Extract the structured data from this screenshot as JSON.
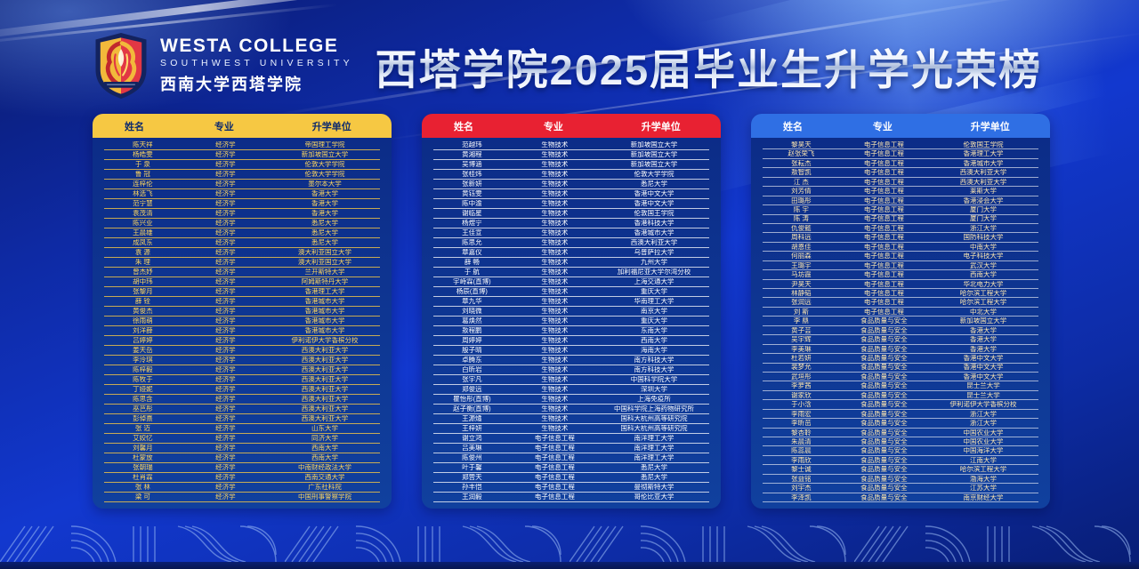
{
  "page": {
    "title": "西塔学院2025届毕业生升学光荣榜"
  },
  "logo": {
    "college_en": "WESTA COLLEGE",
    "university_en": "SOUTHWEST UNIVERSITY",
    "college_cn": "西南大学西塔学院",
    "shield_colors": {
      "left": "#f2b93b",
      "right": "#e23744",
      "border": "#13235f"
    }
  },
  "columns": [
    "姓名",
    "专业",
    "升学单位"
  ],
  "tables": [
    {
      "colors": {
        "header_bg": "#f6c843",
        "header_fg": "#0d2a6e",
        "row_fg": "#ffd75e",
        "line": "rgba(246,200,67,0.8)"
      },
      "rows": [
        [
          "陈天祥",
          "经济学",
          "帝国理工学院"
        ],
        [
          "杨皓雯",
          "经济学",
          "新加坡国立大学"
        ],
        [
          "于 泉",
          "经济学",
          "伦敦大学学院"
        ],
        [
          "鲁 冠",
          "经济学",
          "伦敦大学学院"
        ],
        [
          "连梓伦",
          "经济学",
          "墨尔本大学"
        ],
        [
          "林选飞",
          "经济学",
          "香港大学"
        ],
        [
          "范宁慧",
          "经济学",
          "香港大学"
        ],
        [
          "袁茂清",
          "经济学",
          "香港大学"
        ],
        [
          "陈兴业",
          "经济学",
          "悉尼大学"
        ],
        [
          "王晨雄",
          "经济学",
          "悉尼大学"
        ],
        [
          "成凤东",
          "经济学",
          "悉尼大学"
        ],
        [
          "袁 源",
          "经济学",
          "澳大利亚国立大学"
        ],
        [
          "朱 理",
          "经济学",
          "澳大利亚国立大学"
        ],
        [
          "曾杰妤",
          "经济学",
          "兰开斯特大学"
        ],
        [
          "胡中玮",
          "经济学",
          "阿姆斯特丹大学"
        ],
        [
          "张黎月",
          "经济学",
          "香港理工大学"
        ],
        [
          "薛 铨",
          "经济学",
          "香港城市大学"
        ],
        [
          "黄俊杰",
          "经济学",
          "香港城市大学"
        ],
        [
          "徐雨萌",
          "经济学",
          "香港城市大学"
        ],
        [
          "刘洋薛",
          "经济学",
          "香港城市大学"
        ],
        [
          "吕婷婷",
          "经济学",
          "伊利诺伊大学香槟分校"
        ],
        [
          "姜天岳",
          "经济学",
          "西澳大利亚大学"
        ],
        [
          "李泠琪",
          "经济学",
          "西澳大利亚大学"
        ],
        [
          "陈梓毅",
          "经济学",
          "西澳大利亚大学"
        ],
        [
          "陈牧于",
          "经济学",
          "西澳大利亚大学"
        ],
        [
          "丁娅妮",
          "经济学",
          "西澳大利亚大学"
        ],
        [
          "陈思含",
          "经济学",
          "西澳大利亚大学"
        ],
        [
          "巫芑彤",
          "经济学",
          "西澳大利亚大学"
        ],
        [
          "彭倬熹",
          "经济学",
          "西澳大利亚大学"
        ],
        [
          "张 迈",
          "经济学",
          "山东大学"
        ],
        [
          "艾姣忆",
          "经济学",
          "同济大学"
        ],
        [
          "刘馨月",
          "经济学",
          "西南大学"
        ],
        [
          "杜蒙放",
          "经济学",
          "西南大学"
        ],
        [
          "张朝瑞",
          "经济学",
          "中南财经政法大学"
        ],
        [
          "杜肖霖",
          "经济学",
          "西南交通大学"
        ],
        [
          "张 林",
          "经济学",
          "广东社科院"
        ],
        [
          "梁 可",
          "经济学",
          "中国刑事警察学院"
        ]
      ]
    },
    {
      "colors": {
        "header_bg": "#e82132",
        "header_fg": "#ffffff",
        "row_fg": "#ffffff",
        "line": "rgba(255,255,255,0.75)"
      },
      "rows": [
        [
          "范越玮",
          "生物技术",
          "新加坡国立大学"
        ],
        [
          "黄湘程",
          "生物技术",
          "新加坡国立大学"
        ],
        [
          "吴博涵",
          "生物技术",
          "新加坡国立大学"
        ],
        [
          "张桂炜",
          "生物技术",
          "伦敦大学学院"
        ],
        [
          "张新妍",
          "生物技术",
          "悉尼大学"
        ],
        [
          "黄钰雯",
          "生物技术",
          "香港中文大学"
        ],
        [
          "陈中渝",
          "生物技术",
          "香港中文大学"
        ],
        [
          "谢临星",
          "生物技术",
          "伦敦国王学院"
        ],
        [
          "杨煜宁",
          "生物技术",
          "香港科技大学"
        ],
        [
          "王佳宣",
          "生物技术",
          "香港城市大学"
        ],
        [
          "陈思允",
          "生物技术",
          "西澳大利亚大学"
        ],
        [
          "章嘉仪",
          "生物技术",
          "乌普萨拉大学"
        ],
        [
          "薛 畅",
          "生物技术",
          "九州大学"
        ],
        [
          "于 航",
          "生物技术",
          "加利福尼亚大学尔湾分校"
        ],
        [
          "宇峙霖(直博)",
          "生物技术",
          "上海交通大学"
        ],
        [
          "杨辰(直博)",
          "生物技术",
          "重庆大学"
        ],
        [
          "章九华",
          "生物技术",
          "华南理工大学"
        ],
        [
          "刘晓微",
          "生物技术",
          "南京大学"
        ],
        [
          "葛焕然",
          "生物技术",
          "重庆大学"
        ],
        [
          "敖程鹏",
          "生物技术",
          "东南大学"
        ],
        [
          "周婷婷",
          "生物技术",
          "西南大学"
        ],
        [
          "殷子晴",
          "生物技术",
          "海南大学"
        ],
        [
          "卓腾东",
          "生物技术",
          "南方科技大学"
        ],
        [
          "白昕岩",
          "生物技术",
          "南方科技大学"
        ],
        [
          "张宇凡",
          "生物技术",
          "中国科学院大学"
        ],
        [
          "郑俊远",
          "生物技术",
          "深圳大学"
        ],
        [
          "瞿怡彤(直博)",
          "生物技术",
          "上海免疫所"
        ],
        [
          "赵子衡(直博)",
          "生物技术",
          "中国科学院上海药物研究所"
        ],
        [
          "王源燏",
          "生物技术",
          "国科大杭州高等研究院"
        ],
        [
          "王梓妍",
          "生物技术",
          "国科大杭州高等研究院"
        ],
        [
          "谢立鸿",
          "电子信息工程",
          "南洋理工大学"
        ],
        [
          "吕美琳",
          "电子信息工程",
          "南洋理工大学"
        ],
        [
          "陈俊州",
          "电子信息工程",
          "南洋理工大学"
        ],
        [
          "叶于馨",
          "电子信息工程",
          "悉尼大学"
        ],
        [
          "郑营天",
          "电子信息工程",
          "悉尼大学"
        ],
        [
          "孙丰恺",
          "电子信息工程",
          "曼彻斯特大学"
        ],
        [
          "王润毅",
          "电子信息工程",
          "哥伦比亚大学"
        ]
      ]
    },
    {
      "colors": {
        "header_bg": "#2f6fe4",
        "header_fg": "#ffffff",
        "row_fg": "#ffe8b0",
        "line": "rgba(255,255,255,0.6)"
      },
      "rows": [
        [
          "黎昊天",
          "电子信息工程",
          "伦敦国王学院"
        ],
        [
          "赵张荣飞",
          "电子信息工程",
          "香港理工大学"
        ],
        [
          "张耘杰",
          "电子信息工程",
          "香港城市大学"
        ],
        [
          "敖智凯",
          "电子信息工程",
          "西澳大利亚大学"
        ],
        [
          "江 杰",
          "电子信息工程",
          "西澳大利亚大学"
        ],
        [
          "刘芳倩",
          "电子信息工程",
          "莱斯大学"
        ],
        [
          "田璐彤",
          "电子信息工程",
          "香港浸会大学"
        ],
        [
          "陈 宇",
          "电子信息工程",
          "厦门大学"
        ],
        [
          "陈 涛",
          "电子信息工程",
          "厦门大学"
        ],
        [
          "仇俊懿",
          "电子信息工程",
          "浙江大学"
        ],
        [
          "周科远",
          "电子信息工程",
          "国防科技大学"
        ],
        [
          "胡恩佳",
          "电子信息工程",
          "中南大学"
        ],
        [
          "何丽森",
          "电子信息工程",
          "电子科技大学"
        ],
        [
          "王璐宇",
          "电子信息工程",
          "武汉大学"
        ],
        [
          "马坊霞",
          "电子信息工程",
          "西南大学"
        ],
        [
          "尹昊天",
          "电子信息工程",
          "华北电力大学"
        ],
        [
          "林静韬",
          "电子信息工程",
          "哈尔滨工程大学"
        ],
        [
          "张润远",
          "电子信息工程",
          "哈尔滨工程大学"
        ],
        [
          "刘 斯",
          "电子信息工程",
          "中北大学"
        ],
        [
          "李 鼎",
          "食品质量与安全",
          "新加坡国立大学"
        ],
        [
          "黄子芸",
          "食品质量与安全",
          "香港大学"
        ],
        [
          "吴宇辉",
          "食品质量与安全",
          "香港大学"
        ],
        [
          "李美琳",
          "食品质量与安全",
          "香港大学"
        ],
        [
          "杜若妍",
          "食品质量与安全",
          "香港中文大学"
        ],
        [
          "裴梦允",
          "食品质量与安全",
          "香港中文大学"
        ],
        [
          "武垣彤",
          "食品质量与安全",
          "香港中文大学"
        ],
        [
          "李萝茜",
          "食品质量与安全",
          "昆士兰大学"
        ],
        [
          "谢家欣",
          "食品质量与安全",
          "昆士兰大学"
        ],
        [
          "于小浛",
          "食品质量与安全",
          "伊利诺伊大学香槟分校"
        ],
        [
          "李雨宏",
          "食品质量与安全",
          "浙江大学"
        ],
        [
          "李昕茁",
          "食品质量与安全",
          "浙江大学"
        ],
        [
          "黎杏聆",
          "食品质量与安全",
          "中国农业大学"
        ],
        [
          "朱晨清",
          "食品质量与安全",
          "中国农业大学"
        ],
        [
          "陈蕊晨",
          "食品质量与安全",
          "中国海洋大学"
        ],
        [
          "李雨欣",
          "食品质量与安全",
          "江南大学"
        ],
        [
          "黎士诚",
          "食品质量与安全",
          "哈尔滨工程大学"
        ],
        [
          "张益铭",
          "食品质量与安全",
          "渤海大学"
        ],
        [
          "刘宇杰",
          "食品质量与安全",
          "江苏大学"
        ],
        [
          "李泽凯",
          "食品质量与安全",
          "南京财经大学"
        ]
      ]
    }
  ]
}
